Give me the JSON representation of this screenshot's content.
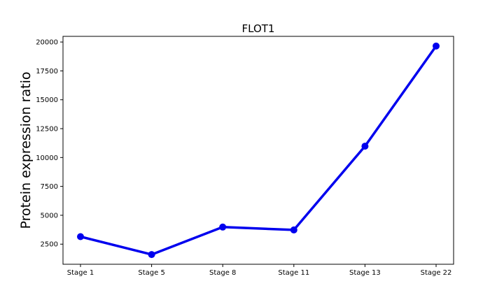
{
  "chart_data": {
    "type": "line",
    "title": "FLOT1",
    "xlabel": "",
    "ylabel": "Protein expression ratio",
    "categories": [
      "Stage 1",
      "Stage 5",
      "Stage 8",
      "Stage 11",
      "Stage 13",
      "Stage 22"
    ],
    "series": [
      {
        "values": [
          3150,
          1600,
          3980,
          3730,
          10980,
          19650
        ]
      }
    ],
    "yticks": [
      2500,
      5000,
      7500,
      10000,
      12500,
      15000,
      17500,
      20000
    ],
    "ytick_labels": [
      "2500",
      "5000",
      "7500",
      "10000",
      "12500",
      "15000",
      "17500",
      "20000"
    ],
    "ylim": [
      760,
      20490
    ],
    "grid": false,
    "legend": "none",
    "colors": {
      "line": "#0000ee",
      "marker": "#0000ee",
      "axes": "#000000"
    }
  }
}
